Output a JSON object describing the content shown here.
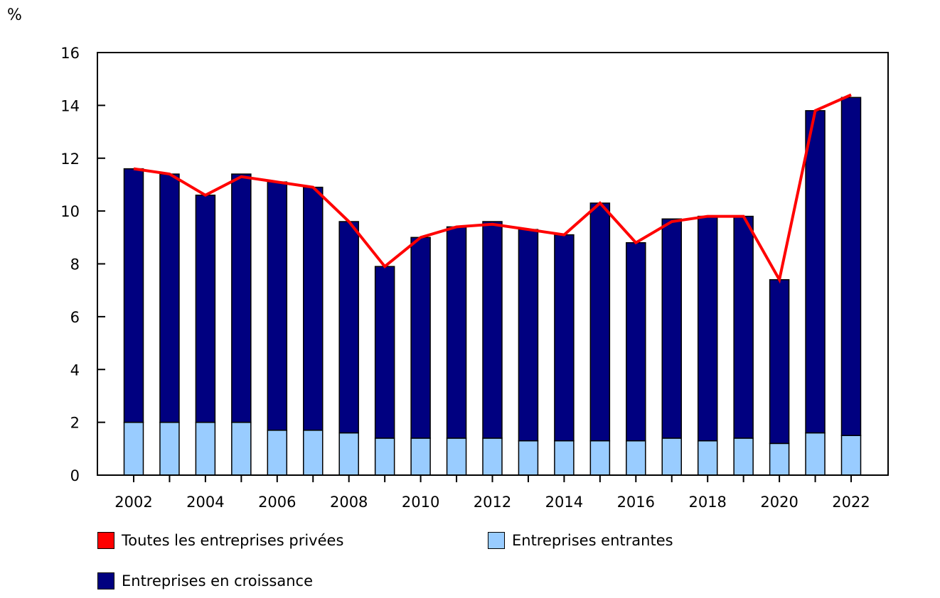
{
  "chart_data": {
    "type": "bar",
    "stacked": true,
    "ylabel": "%",
    "ylim": [
      0,
      16
    ],
    "yticks": [
      0,
      2,
      4,
      6,
      8,
      10,
      12,
      14,
      16
    ],
    "x": [
      2002,
      2003,
      2004,
      2005,
      2006,
      2007,
      2008,
      2009,
      2010,
      2011,
      2012,
      2013,
      2014,
      2015,
      2016,
      2017,
      2018,
      2019,
      2020,
      2021,
      2022
    ],
    "xtick_labels": [
      "2002",
      "2004",
      "2006",
      "2008",
      "2010",
      "2012",
      "2014",
      "2016",
      "2018",
      "2020",
      "2022"
    ],
    "series": [
      {
        "name": "Entreprises entrantes",
        "type": "bar",
        "color": "#99ccff",
        "values": [
          2.0,
          2.0,
          2.0,
          2.0,
          1.7,
          1.7,
          1.6,
          1.4,
          1.4,
          1.4,
          1.4,
          1.3,
          1.3,
          1.3,
          1.3,
          1.4,
          1.3,
          1.4,
          1.2,
          1.6,
          1.5
        ]
      },
      {
        "name": "Entreprises en croissance",
        "type": "bar",
        "color": "#000080",
        "values": [
          9.6,
          9.4,
          8.6,
          9.4,
          9.4,
          9.2,
          8.0,
          6.5,
          7.6,
          8.0,
          8.2,
          8.0,
          7.8,
          9.0,
          7.5,
          8.3,
          8.5,
          8.4,
          6.2,
          12.2,
          12.8
        ]
      },
      {
        "name": "Toutes les entreprises privées",
        "type": "line",
        "color": "#ff0000",
        "values": [
          11.6,
          11.4,
          10.6,
          11.3,
          11.1,
          10.9,
          9.6,
          7.9,
          9.0,
          9.4,
          9.5,
          9.3,
          9.1,
          10.3,
          8.8,
          9.6,
          9.8,
          9.8,
          7.4,
          13.8,
          14.4
        ]
      }
    ],
    "legend": [
      "Toutes les entreprises privées",
      "Entreprises entrantes",
      "Entreprises en croissance"
    ],
    "legend_position": "bottom",
    "grid": false
  }
}
